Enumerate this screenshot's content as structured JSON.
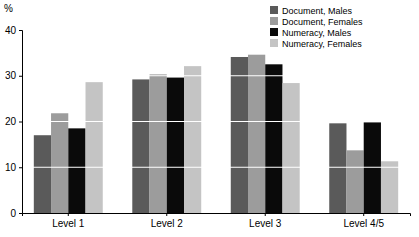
{
  "chart_data": {
    "type": "bar",
    "y_label": "%",
    "categories": [
      "Level 1",
      "Level 2",
      "Level 3",
      "Level 4/5"
    ],
    "series": [
      {
        "name": "Document, Males",
        "color": "#5a5a5a",
        "values": [
          17.0,
          29.2,
          34.1,
          19.6
        ]
      },
      {
        "name": "Document, Females",
        "color": "#9c9c9c",
        "values": [
          21.8,
          30.3,
          34.6,
          13.7
        ]
      },
      {
        "name": "Numeracy, Males",
        "color": "#0a0a0a",
        "values": [
          18.5,
          29.6,
          32.5,
          19.8
        ]
      },
      {
        "name": "Numeracy, Females",
        "color": "#c4c4c4",
        "values": [
          28.6,
          32.1,
          28.4,
          11.3
        ]
      }
    ],
    "ylim": [
      0,
      40
    ],
    "yticks": [
      0,
      10,
      20,
      30,
      40
    ],
    "grid": true,
    "legend": "top-right"
  }
}
